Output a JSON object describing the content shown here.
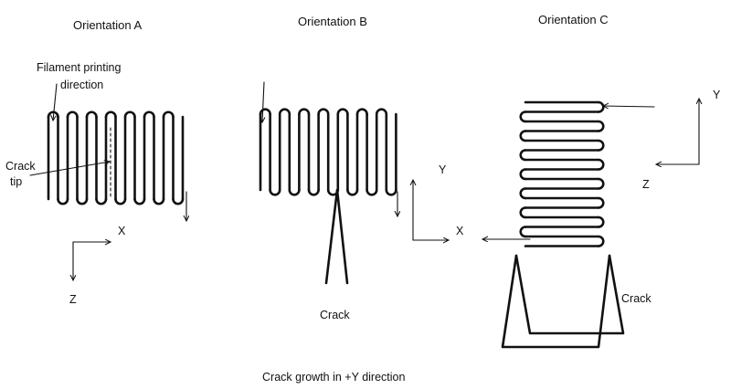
{
  "orientations": [
    {
      "title": "Orientation A"
    },
    {
      "title": "Orientation B"
    },
    {
      "title": "Orientation C"
    }
  ],
  "labels": {
    "filament_line1": "Filament printing",
    "filament_line2": "direction",
    "crack_tip_line1": "Crack",
    "crack_tip_line2": "tip",
    "crack_b": "Crack",
    "crack_c": "Crack"
  },
  "axes": {
    "a_x": "X",
    "a_z": "Z",
    "b_y": "Y",
    "b_x": "X",
    "c_y": "Y",
    "c_z": "Z"
  },
  "caption": "Crack growth in +Y direction"
}
